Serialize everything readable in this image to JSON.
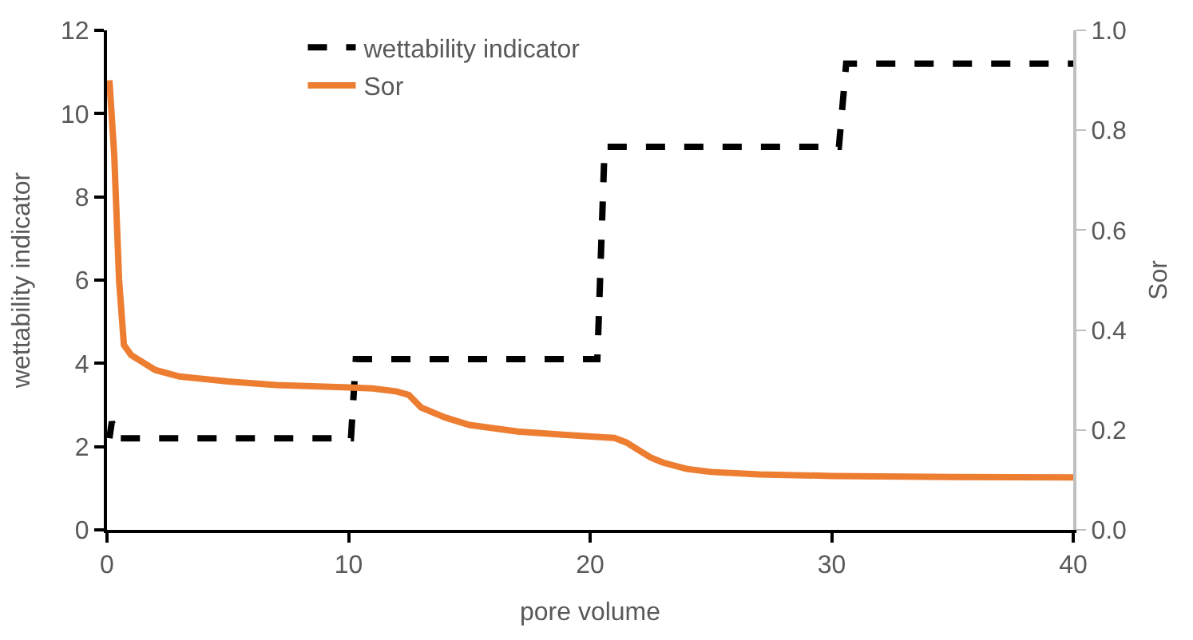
{
  "chart_data": {
    "type": "line",
    "xlabel": "pore volume",
    "ylabel": "wettability indicator",
    "y2label": "Sor",
    "xlim": [
      0,
      40
    ],
    "xticks": [
      0,
      10,
      20,
      30,
      40
    ],
    "ylim": [
      0,
      12
    ],
    "yticks": [
      0,
      2,
      4,
      6,
      8,
      10,
      12
    ],
    "y2lim": [
      0,
      1
    ],
    "y2ticks": [
      {
        "value": 0,
        "label": "0.0"
      },
      {
        "value": 0.2,
        "label": "0.2"
      },
      {
        "value": 0.4,
        "label": "0.4"
      },
      {
        "value": 0.6,
        "label": "0.6"
      },
      {
        "value": 0.8,
        "label": "0.8"
      },
      {
        "value": 1,
        "label": "1.0"
      }
    ],
    "legend": "top",
    "marker": "none",
    "series": [
      {
        "name": "wettability indicator",
        "color": "#000000",
        "line_style": "dashed",
        "x": [
          0.1,
          0.2,
          0.4,
          10.1,
          10.3,
          20.3,
          20.6,
          30.3,
          30.6,
          40
        ],
        "values": [
          2.2,
          2.6,
          2.2,
          2.2,
          4.1,
          4.1,
          9.2,
          9.2,
          11.2,
          11.2
        ]
      },
      {
        "name": "Sor",
        "color": "#ed7d31",
        "line_style": "solid",
        "axis": "y2",
        "x": [
          0.1,
          0.3,
          0.5,
          0.7,
          1,
          1.5,
          2,
          3,
          5,
          7,
          10,
          11,
          12,
          12.5,
          13,
          14,
          15,
          17,
          19,
          21,
          21.5,
          22,
          22.5,
          23,
          24,
          25,
          27,
          30,
          35,
          40
        ],
        "values": [
          0.9,
          0.75,
          0.5,
          0.37,
          0.35,
          0.335,
          0.32,
          0.307,
          0.297,
          0.29,
          0.285,
          0.283,
          0.277,
          0.27,
          0.245,
          0.225,
          0.21,
          0.197,
          0.19,
          0.184,
          0.175,
          0.16,
          0.145,
          0.135,
          0.122,
          0.116,
          0.111,
          0.108,
          0.106,
          0.105
        ]
      }
    ]
  }
}
